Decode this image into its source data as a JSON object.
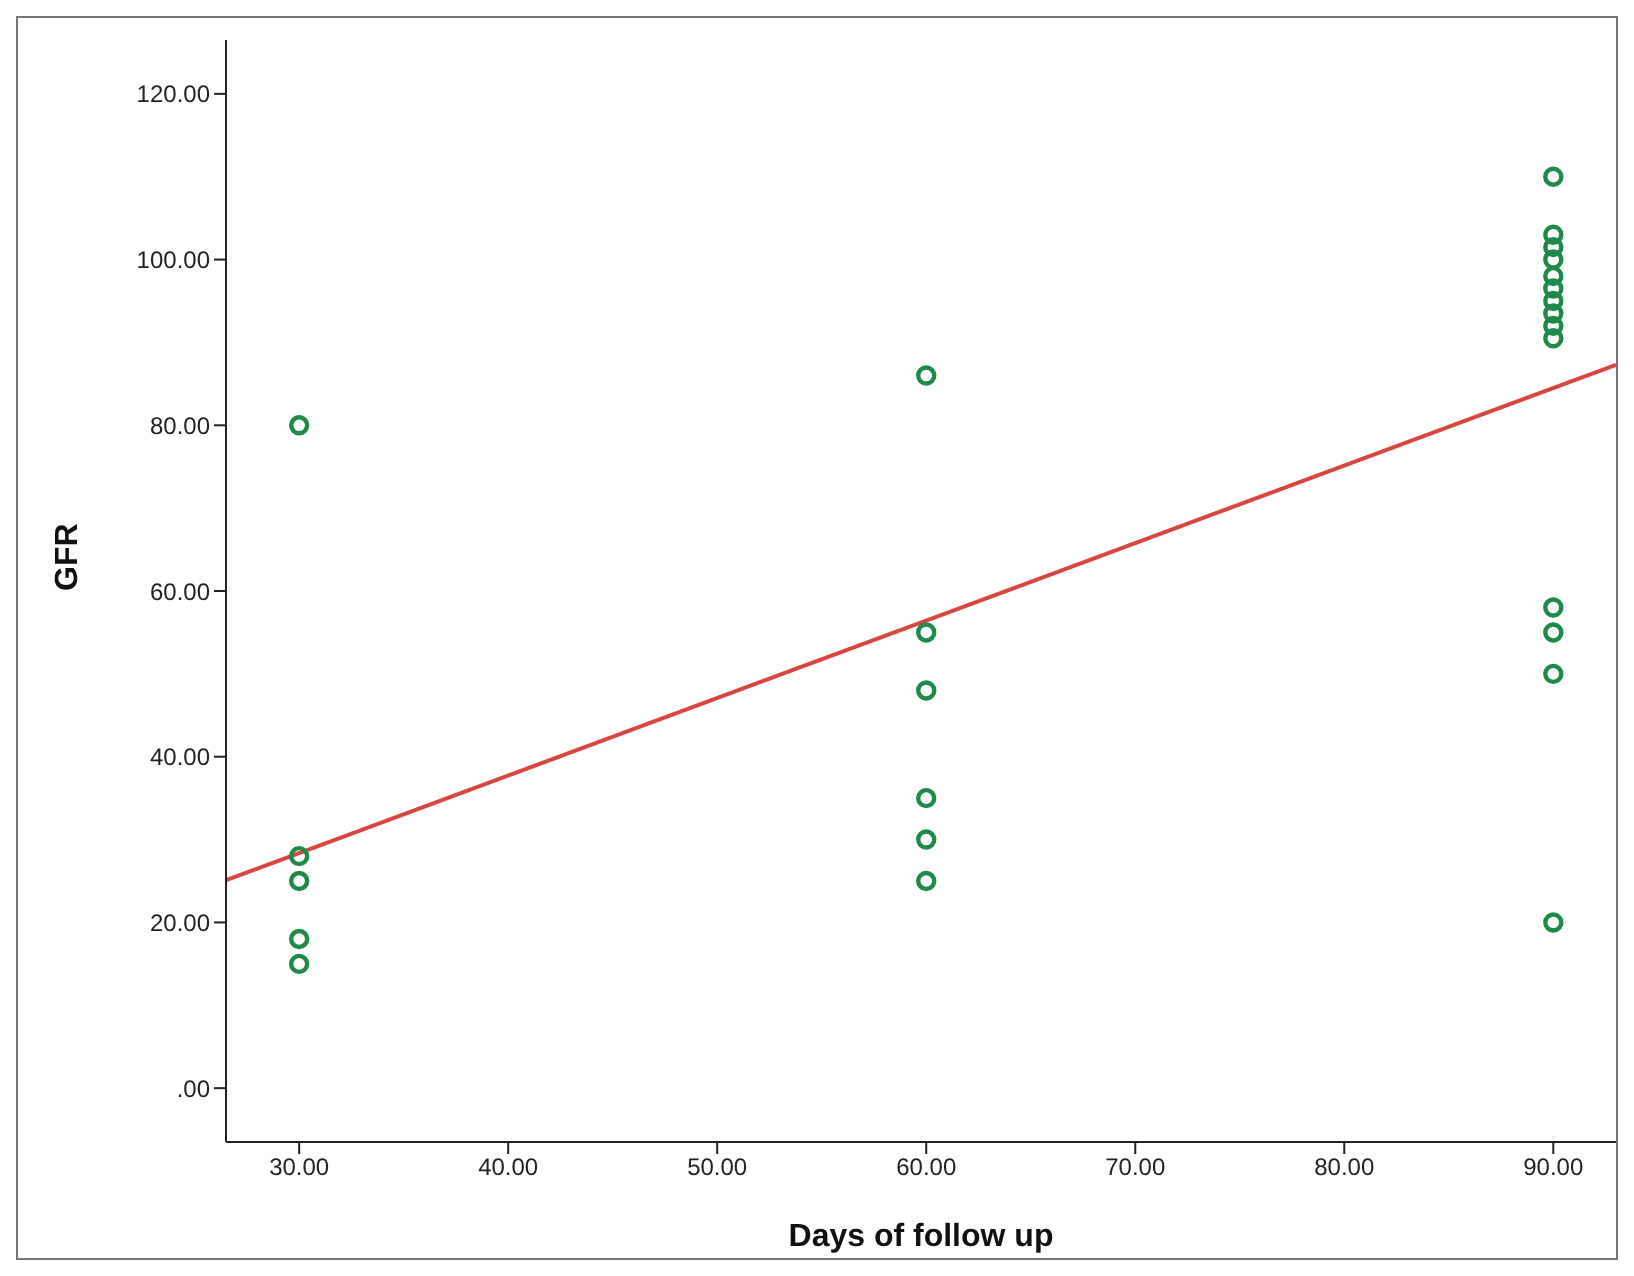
{
  "chart_data": {
    "type": "scatter",
    "xlabel": "Days of follow up",
    "ylabel": "GFR",
    "xlim": [
      26.5,
      93
    ],
    "ylim": [
      -6.5,
      126.5
    ],
    "xticks": [
      {
        "value": 30,
        "label": "30.00"
      },
      {
        "value": 40,
        "label": "40.00"
      },
      {
        "value": 50,
        "label": "50.00"
      },
      {
        "value": 60,
        "label": "60.00"
      },
      {
        "value": 70,
        "label": "70.00"
      },
      {
        "value": 80,
        "label": "80.00"
      },
      {
        "value": 90,
        "label": "90.00"
      }
    ],
    "yticks": [
      {
        "value": 0,
        "label": ".00"
      },
      {
        "value": 20,
        "label": "20.00"
      },
      {
        "value": 40,
        "label": "40.00"
      },
      {
        "value": 60,
        "label": "60.00"
      },
      {
        "value": 80,
        "label": "80.00"
      },
      {
        "value": 100,
        "label": "100.00"
      },
      {
        "value": 120,
        "label": "120.00"
      }
    ],
    "grid": false,
    "legend": false,
    "marker": "circle",
    "series": [
      {
        "color": "#1e8a4a",
        "x": [
          30,
          30,
          30,
          30,
          30,
          60,
          60,
          60,
          60,
          60,
          60,
          90,
          90,
          90,
          90,
          90,
          90,
          90,
          90,
          90,
          90,
          90,
          90,
          90,
          90
        ],
        "values": [
          80,
          28,
          25,
          18,
          15,
          86,
          55,
          48,
          35,
          30,
          25,
          110,
          103,
          101.5,
          100,
          98,
          96.5,
          95,
          93.5,
          92,
          90.5,
          58,
          55,
          50,
          20
        ]
      },
      {
        "type": "line",
        "color": "#d9463f",
        "x": [
          26.5,
          93
        ],
        "values": [
          25.1,
          87.3
        ],
        "marker": "none",
        "line_style": "solid"
      }
    ]
  }
}
